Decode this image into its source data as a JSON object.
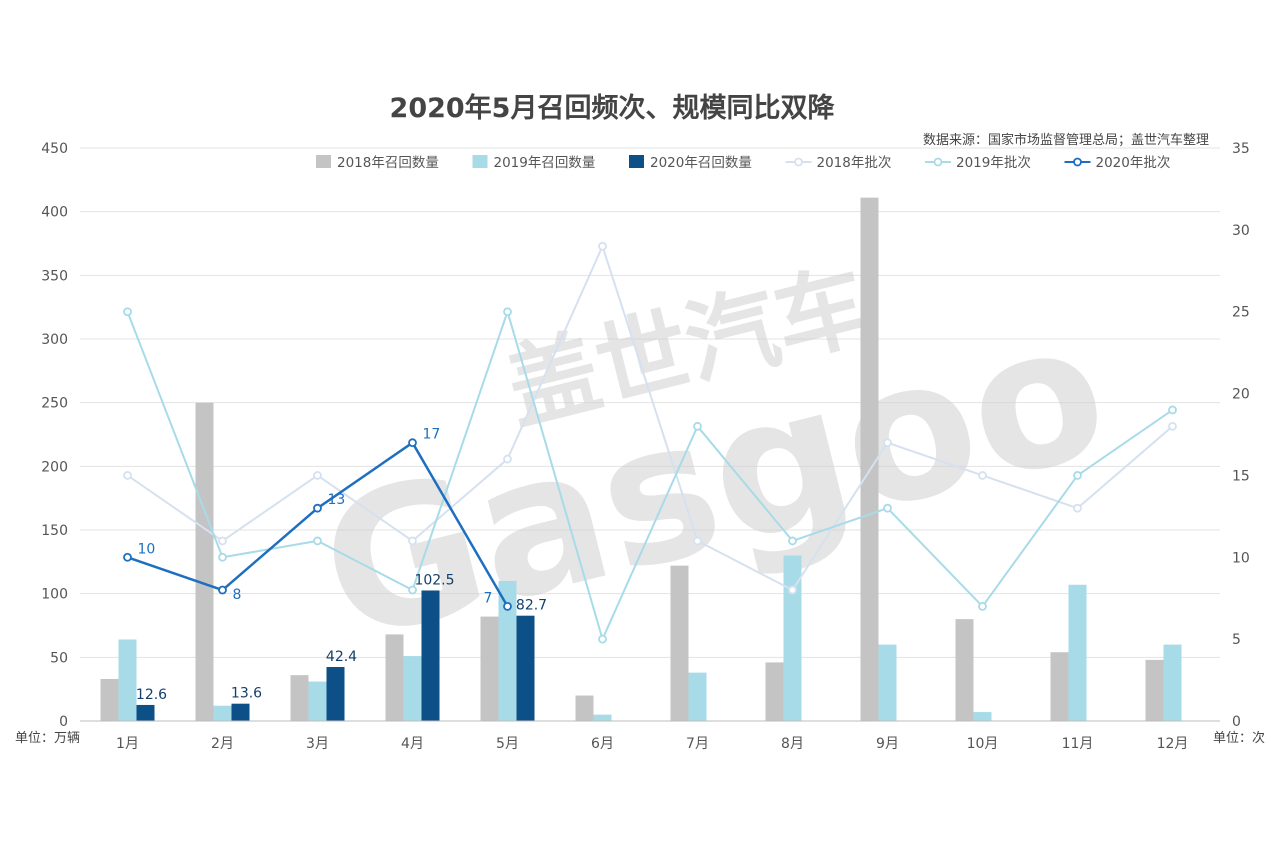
{
  "chart_data": {
    "type": "bar",
    "title": "2020年5月召回频次、规模同比双降",
    "source": "数据来源：国家市场监督管理总局；盖世汽车整理",
    "categories": [
      "1月",
      "2月",
      "3月",
      "4月",
      "5月",
      "6月",
      "7月",
      "8月",
      "9月",
      "10月",
      "11月",
      "12月"
    ],
    "left_axis": {
      "unit_label": "单位：万辆",
      "ylim": [
        0,
        450
      ],
      "ticks": [
        "0",
        "50",
        "100",
        "150",
        "200",
        "250",
        "300",
        "350",
        "400",
        "450"
      ]
    },
    "right_axis": {
      "unit_label": "单位：次",
      "ylim": [
        0,
        35
      ],
      "ticks": [
        "0",
        "5",
        "10",
        "15",
        "20",
        "25",
        "30",
        "35"
      ]
    },
    "bar_series": [
      {
        "name": "2018年召回数量",
        "color": "#c4c4c4",
        "values": [
          33,
          250,
          36,
          68,
          82,
          20,
          122,
          46,
          411,
          80,
          54,
          48
        ]
      },
      {
        "name": "2019年召回数量",
        "color": "#a8dbe8",
        "values": [
          64,
          12,
          31,
          51,
          110,
          5,
          38,
          130,
          60,
          7,
          107,
          60
        ]
      },
      {
        "name": "2020年召回数量",
        "color": "#0d4f87",
        "values": [
          12.6,
          13.6,
          42.4,
          102.5,
          82.7,
          null,
          null,
          null,
          null,
          null,
          null,
          null
        ],
        "labels": [
          "12.6",
          "13.6",
          "42.4",
          "102.5",
          "82.7"
        ]
      }
    ],
    "line_series": [
      {
        "name": "2018年批次",
        "color": "#d6e1f0",
        "values": [
          15,
          11,
          15,
          11,
          16,
          29,
          11,
          8,
          17,
          15,
          13,
          18
        ]
      },
      {
        "name": "2019年批次",
        "color": "#a8dbe8",
        "values": [
          25,
          10,
          11,
          8,
          25,
          5,
          18,
          11,
          13,
          7,
          15,
          19
        ]
      },
      {
        "name": "2020年批次",
        "color": "#1f6fc0",
        "values": [
          10,
          8,
          13,
          17,
          7,
          null,
          null,
          null,
          null,
          null,
          null,
          null
        ],
        "labels": [
          "10",
          "8",
          "13",
          "17",
          "7"
        ]
      }
    ],
    "grid": true,
    "legend_position": "top-right"
  },
  "watermark": {
    "brand": "Gasgoo",
    "text": "盖世汽车"
  }
}
